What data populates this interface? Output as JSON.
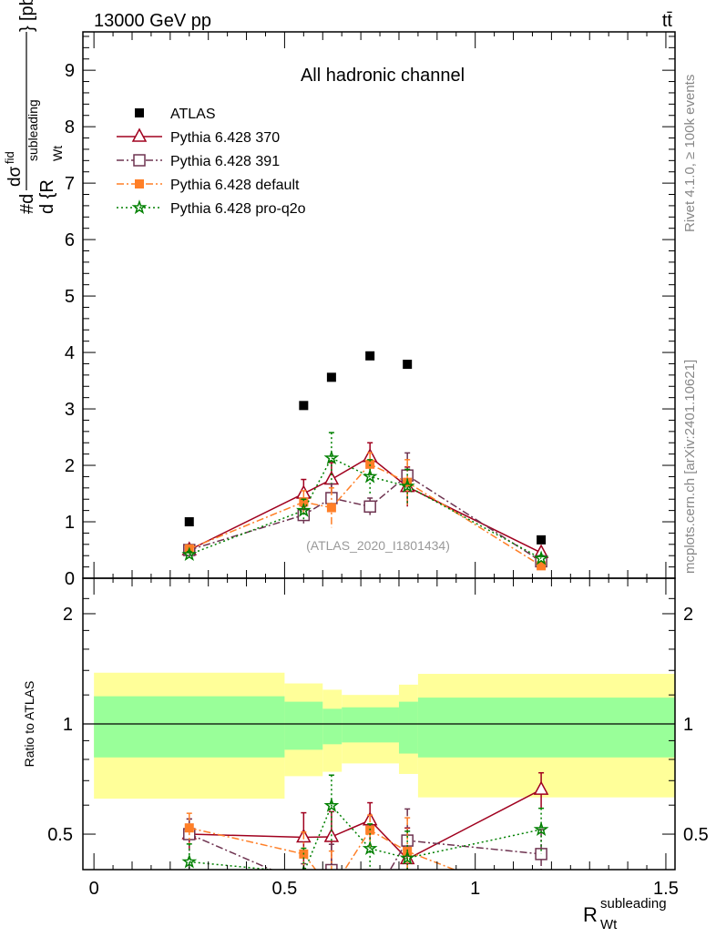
{
  "header": {
    "left": "13000 GeV pp",
    "right": "tt̄"
  },
  "side_labels": {
    "rivet": "Rivet 4.1.0, ≥ 100k events",
    "mcplots": "mcplots.cern.ch [arXiv:2401.10621]"
  },
  "chart_data": [
    {
      "type": "scatter",
      "panel": "main",
      "title": "All hadronic channel",
      "watermark": "(ATLAS_2020_I1801434)",
      "ylabel": {
        "prefix": "#d",
        "numerator": "dσ",
        "numerator_sup": "fid",
        "denominator": "d {R",
        "denominator_sup": "subleading",
        "denominator_sub": "Wt",
        "denominator_close": "}",
        "unit": "[pb]"
      },
      "xlim": [
        -0.029,
        1.524
      ],
      "ylim": [
        0,
        9.68
      ],
      "yticks": [
        0,
        1,
        2,
        3,
        4,
        5,
        6,
        7,
        8,
        9
      ],
      "ytick_labels": [
        "0",
        "1",
        "2",
        "3",
        "4",
        "5",
        "6",
        "7",
        "8",
        "9"
      ],
      "legend_position": "top-left",
      "x": [
        0.25,
        0.55,
        0.623,
        0.724,
        0.822,
        1.173
      ],
      "bin_edges": [
        0,
        0.5,
        0.6,
        0.65,
        0.8,
        0.85,
        1.6
      ],
      "data": {
        "name": "ATLAS",
        "values": [
          1.0,
          3.06,
          3.56,
          3.94,
          3.79,
          0.68
        ],
        "color": "#000000"
      },
      "series": [
        {
          "name": "Pythia 6.428 370",
          "values": [
            0.5,
            1.5,
            1.75,
            2.15,
            1.62,
            0.45
          ],
          "errors": [
            0.05,
            0.25,
            0.3,
            0.25,
            0.35,
            0.05
          ],
          "color": "#a0001e",
          "marker": "triangle-open",
          "dash": ""
        },
        {
          "name": "Pythia 6.428 391",
          "values": [
            0.5,
            1.12,
            1.42,
            1.27,
            1.82,
            0.3
          ],
          "errors": [
            0.05,
            0.15,
            0.25,
            0.15,
            0.4,
            0.05
          ],
          "color": "#6e3350",
          "marker": "square-open",
          "dash": "8,3,2,3"
        },
        {
          "name": "Pythia 6.428 default",
          "values": [
            0.52,
            1.35,
            1.25,
            2.02,
            1.7,
            0.22
          ],
          "errors": [
            0.05,
            0.2,
            0.35,
            0.2,
            0.4,
            0.05
          ],
          "color": "#ff7f27",
          "marker": "square-filled",
          "dash": "8,3,2,3"
        },
        {
          "name": "Pythia 6.428 pro-q2o",
          "values": [
            0.42,
            1.2,
            2.13,
            1.8,
            1.63,
            0.35
          ],
          "errors": [
            0.05,
            0.2,
            0.45,
            0.3,
            0.3,
            0.05
          ],
          "color": "#008000",
          "marker": "star",
          "dash": "2,3"
        }
      ]
    },
    {
      "type": "scatter",
      "panel": "ratio",
      "ylabel": "Ratio to ATLAS",
      "xlabel": "R",
      "xlabel_sup": "subleading",
      "xlabel_sub": "Wt",
      "yscale": "log",
      "ylim": [
        0.4,
        2.5
      ],
      "yticks": [
        0.5,
        1,
        2
      ],
      "ytick_labels": [
        "0.5",
        "1",
        "2"
      ],
      "xticks": [
        0,
        0.5,
        1,
        1.5
      ],
      "xtick_labels": [
        "0",
        "0.5",
        "1",
        "1.5"
      ],
      "band_outer": {
        "color": "#ffff99",
        "upper": [
          1.38,
          1.29,
          1.24,
          1.2,
          1.28,
          1.37
        ],
        "lower": [
          0.625,
          0.72,
          0.74,
          0.78,
          0.73,
          0.63
        ]
      },
      "band_inner": {
        "color": "#99ff99",
        "upper": [
          1.19,
          1.15,
          1.1,
          1.11,
          1.15,
          1.18
        ],
        "lower": [
          0.81,
          0.85,
          0.88,
          0.89,
          0.83,
          0.81
        ]
      }
    }
  ]
}
